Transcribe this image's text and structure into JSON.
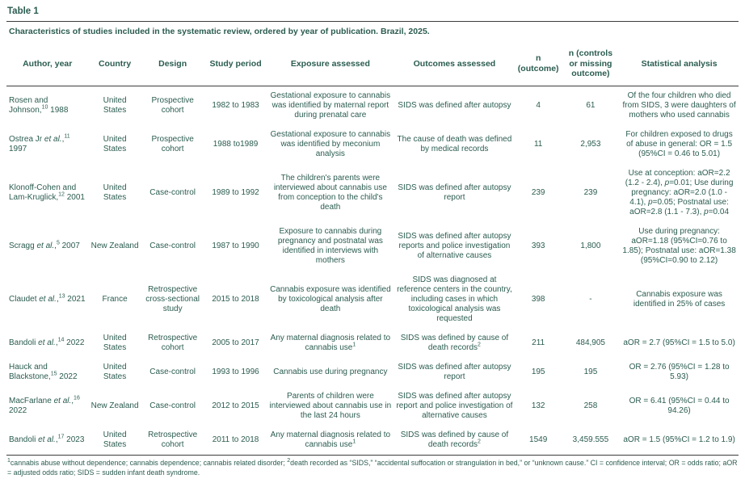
{
  "page": {
    "label": "Table 1",
    "caption": "Characteristics of studies included in the systematic review, ordered by year of publication. Brazil, 2025."
  },
  "colors": {
    "text": "#2b5c50",
    "rule": "#3c3c3c"
  },
  "table": {
    "columns": [
      "Author, year",
      "Country",
      "Design",
      "Study period",
      "Exposure assessed",
      "Outcomes assessed",
      "n (outcome)",
      "n (controls or missing outcome)",
      "Statistical analysis"
    ],
    "rows": [
      {
        "author": "Rosen and Johnson,^10^ 1988",
        "country": "United States",
        "design": "Prospective cohort",
        "period": "1982 to 1983",
        "exposure": "Gestational exposure to cannabis was identified by maternal report during prenatal care",
        "outcomes": "SIDS was defined after autopsy",
        "n_outcome": "4",
        "n_controls": "61",
        "analysis": "Of the four children who died from SIDS, 3 were daughters of mothers who used cannabis"
      },
      {
        "author": "Ostrea Jr *et al.*,^11^ 1997",
        "country": "United States",
        "design": "Prospective cohort",
        "period": "1988 to1989",
        "exposure": "Gestational exposure to cannabis was identified by meconium analysis",
        "outcomes": "The cause of death was defined by medical records",
        "n_outcome": "11",
        "n_controls": "2,953",
        "analysis": "For children exposed to drugs of abuse in general: OR = 1.5 (95%CI = 0.46 to 5.01)"
      },
      {
        "author": "Klonoff-Cohen and Lam-Kruglick,^12^ 2001",
        "country": "United States",
        "design": "Case-control",
        "period": "1989 to 1992",
        "exposure": "The children's parents were interviewed about cannabis use from conception to the child's death",
        "outcomes": "SIDS was defined after autopsy report",
        "n_outcome": "239",
        "n_controls": "239",
        "analysis": "Use at conception: aOR=2.2 (1.2 - 2.4), *p*=0.01; Use during pregnancy: aOR=2.0 (1.0 - 4.1), *p*=0.05; Postnatal use: aOR=2.8 (1.1 - 7.3), *p*=0.04"
      },
      {
        "author": "Scragg *et al.*,^5^ 2007",
        "country": "New Zealand",
        "design": "Case-control",
        "period": "1987 to 1990",
        "exposure": "Exposure to cannabis during pregnancy and postnatal was identified in interviews with mothers",
        "outcomes": "SIDS was defined after autopsy reports and police investigation of alternative causes",
        "n_outcome": "393",
        "n_controls": "1,800",
        "analysis": "Use during pregnancy: aOR=1.18 (95%CI=0.76 to 1.85); Postnatal use: aOR=1.38 (95%CI=0.90 to 2.12)"
      },
      {
        "author": "Claudet *et al.*,^13^ 2021",
        "country": "France",
        "design": "Retrospective cross-sectional study",
        "period": "2015 to 2018",
        "exposure": "Cannabis exposure was identified by toxicological analysis after death",
        "outcomes": "SIDS was diagnosed at reference centers in the country, including cases in which toxicological analysis was requested",
        "n_outcome": "398",
        "n_controls": "-",
        "analysis": "Cannabis exposure was identified in 25% of cases"
      },
      {
        "author": "Bandoli *et al.*,^14^ 2022",
        "country": "United States",
        "design": "Retrospective cohort",
        "period": "2005 to 2017",
        "exposure": "Any maternal diagnosis related to cannabis use^1^",
        "outcomes": "SIDS was defined by cause of death records^2^",
        "n_outcome": "211",
        "n_controls": "484,905",
        "analysis": "aOR = 2.7 (95%CI = 1.5 to 5.0)"
      },
      {
        "author": "Hauck and Blackstone,^15^ 2022",
        "country": "United States",
        "design": "Case-control",
        "period": "1993 to 1996",
        "exposure": "Cannabis use during pregnancy",
        "outcomes": "SIDS was defined after autopsy report",
        "n_outcome": "195",
        "n_controls": "195",
        "analysis": "OR = 2.76 (95%CI = 1.28 to 5.93)"
      },
      {
        "author": "MacFarlane *et al.*,^16^ 2022",
        "country": "New Zealand",
        "design": "Case-control",
        "period": "2012 to 2015",
        "exposure": "Parents of children were interviewed about cannabis use in the last 24 hours",
        "outcomes": "SIDS was defined after autopsy report and police investigation of alternative causes",
        "n_outcome": "132",
        "n_controls": "258",
        "analysis": "OR = 6.41 (95%CI = 0.44 to 94.26)"
      },
      {
        "author": "Bandoli *et al.*,^17^ 2023",
        "country": "United States",
        "design": "Retrospective cohort",
        "period": "2011 to 2018",
        "exposure": "Any maternal diagnosis related to cannabis use^1^",
        "outcomes": "SIDS was defined by cause of death records^2^",
        "n_outcome": "1549",
        "n_controls": "3,459.555",
        "analysis": "aOR = 1.5 (95%CI = 1.2 to 1.9)"
      }
    ],
    "footnote": "^1^cannabis abuse without dependence; cannabis dependence; cannabis related disorder; ^2^death recorded as “SIDS,” “accidental suffocation or strangulation in bed,” or “unknown cause.” CI = confidence interval; OR = odds ratio; aOR = adjusted odds ratio; SIDS = sudden infant death syndrome."
  }
}
